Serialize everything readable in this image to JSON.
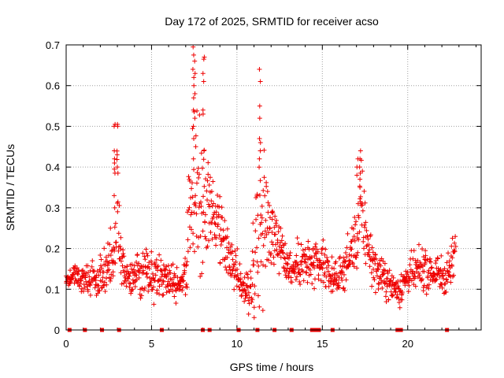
{
  "chart_data": {
    "type": "scatter",
    "title": "Day 172 of 2025, SRMTID for receiver acso",
    "xlabel": "GPS time / hours",
    "ylabel": "SRMTID / TECUs",
    "xlim": [
      0,
      24.3
    ],
    "ylim": [
      0,
      0.7
    ],
    "xticks": [
      0,
      5,
      10,
      15,
      20
    ],
    "yticks": [
      0,
      0.1,
      0.2,
      0.3,
      0.4,
      0.5,
      0.6,
      0.7
    ],
    "grid": true,
    "marker": "+",
    "color": "#ee0000",
    "series": [
      {
        "name": "SRMTID",
        "profile_hours": [
          0,
          0.5,
          1,
          1.5,
          2,
          2.5,
          2.8,
          3,
          3.2,
          3.5,
          4,
          4.5,
          5,
          5.5,
          6,
          6.5,
          7,
          7.3,
          7.6,
          7.9,
          8.1,
          8.4,
          8.8,
          9.2,
          9.6,
          10,
          10.4,
          10.8,
          11.2,
          11.5,
          11.8,
          12.2,
          12.6,
          13,
          13.5,
          14,
          14.5,
          15,
          15.5,
          16,
          16.5,
          17,
          17.3,
          17.6,
          18,
          18.5,
          19,
          19.5,
          20,
          20.5,
          21,
          21.5,
          22,
          22.5,
          22.8
        ],
        "profile_center": [
          0.13,
          0.13,
          0.12,
          0.13,
          0.12,
          0.17,
          0.2,
          0.3,
          0.17,
          0.13,
          0.13,
          0.14,
          0.13,
          0.14,
          0.13,
          0.12,
          0.13,
          0.35,
          0.33,
          0.3,
          0.28,
          0.3,
          0.25,
          0.2,
          0.17,
          0.14,
          0.1,
          0.1,
          0.24,
          0.3,
          0.25,
          0.24,
          0.2,
          0.16,
          0.15,
          0.17,
          0.15,
          0.16,
          0.13,
          0.13,
          0.17,
          0.22,
          0.3,
          0.22,
          0.16,
          0.13,
          0.11,
          0.1,
          0.13,
          0.14,
          0.15,
          0.14,
          0.13,
          0.15,
          0.2
        ],
        "profile_spread": [
          0.03,
          0.03,
          0.04,
          0.04,
          0.05,
          0.07,
          0.08,
          0.12,
          0.08,
          0.05,
          0.05,
          0.06,
          0.05,
          0.05,
          0.05,
          0.05,
          0.06,
          0.18,
          0.2,
          0.18,
          0.14,
          0.1,
          0.09,
          0.07,
          0.05,
          0.05,
          0.04,
          0.06,
          0.2,
          0.18,
          0.1,
          0.08,
          0.07,
          0.05,
          0.05,
          0.06,
          0.05,
          0.06,
          0.04,
          0.04,
          0.05,
          0.09,
          0.1,
          0.07,
          0.05,
          0.04,
          0.04,
          0.04,
          0.04,
          0.05,
          0.05,
          0.05,
          0.05,
          0.05,
          0.05
        ],
        "peaks": [
          {
            "x": 2.85,
            "values": [
              0.505,
              0.5,
              0.44,
              0.42,
              0.41,
              0.395,
              0.385,
              0.33,
              0.3
            ]
          },
          {
            "x": 3.0,
            "values": [
              0.505,
              0.5,
              0.43,
              0.4,
              0.385
            ]
          },
          {
            "x": 7.45,
            "values": [
              0.695,
              0.675,
              0.64,
              0.62,
              0.6,
              0.57,
              0.54,
              0.5,
              0.47,
              0.42
            ]
          },
          {
            "x": 7.55,
            "values": [
              0.66,
              0.63,
              0.58,
              0.52,
              0.45
            ]
          },
          {
            "x": 8.05,
            "values": [
              0.67,
              0.665,
              0.63,
              0.61,
              0.54,
              0.53,
              0.44
            ]
          },
          {
            "x": 11.35,
            "values": [
              0.64,
              0.61,
              0.55,
              0.52,
              0.47,
              0.46,
              0.44,
              0.42
            ]
          },
          {
            "x": 17.2,
            "values": [
              0.44,
              0.42,
              0.4,
              0.385,
              0.37
            ]
          },
          {
            "x": 17.05,
            "values": [
              0.42,
              0.4,
              0.38
            ]
          }
        ],
        "n_points": 1300,
        "y_min": 0.03,
        "y_max": 0.7
      }
    ],
    "zero_flags_hours": [
      0.2,
      1.1,
      2.1,
      3.1,
      5.6,
      8.0,
      8.4,
      10.1,
      11.2,
      12.2,
      13.2,
      14.4,
      14.6,
      14.8,
      15.6,
      19.4,
      19.6,
      22.3
    ]
  }
}
